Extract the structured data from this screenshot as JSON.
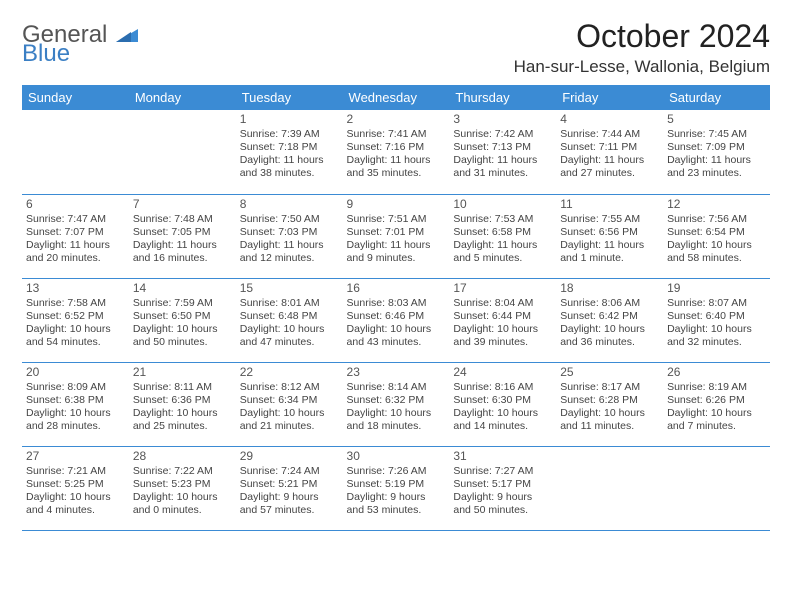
{
  "brand": {
    "text1": "General",
    "text2": "Blue",
    "logo_color": "#3b8bd4"
  },
  "title": "October 2024",
  "location": "Han-sur-Lesse, Wallonia, Belgium",
  "header_bg": "#3b8bd4",
  "weekdays": [
    "Sunday",
    "Monday",
    "Tuesday",
    "Wednesday",
    "Thursday",
    "Friday",
    "Saturday"
  ],
  "weeks": [
    [
      null,
      null,
      {
        "d": "1",
        "sr": "Sunrise: 7:39 AM",
        "ss": "Sunset: 7:18 PM",
        "dl1": "Daylight: 11 hours",
        "dl2": "and 38 minutes."
      },
      {
        "d": "2",
        "sr": "Sunrise: 7:41 AM",
        "ss": "Sunset: 7:16 PM",
        "dl1": "Daylight: 11 hours",
        "dl2": "and 35 minutes."
      },
      {
        "d": "3",
        "sr": "Sunrise: 7:42 AM",
        "ss": "Sunset: 7:13 PM",
        "dl1": "Daylight: 11 hours",
        "dl2": "and 31 minutes."
      },
      {
        "d": "4",
        "sr": "Sunrise: 7:44 AM",
        "ss": "Sunset: 7:11 PM",
        "dl1": "Daylight: 11 hours",
        "dl2": "and 27 minutes."
      },
      {
        "d": "5",
        "sr": "Sunrise: 7:45 AM",
        "ss": "Sunset: 7:09 PM",
        "dl1": "Daylight: 11 hours",
        "dl2": "and 23 minutes."
      }
    ],
    [
      {
        "d": "6",
        "sr": "Sunrise: 7:47 AM",
        "ss": "Sunset: 7:07 PM",
        "dl1": "Daylight: 11 hours",
        "dl2": "and 20 minutes."
      },
      {
        "d": "7",
        "sr": "Sunrise: 7:48 AM",
        "ss": "Sunset: 7:05 PM",
        "dl1": "Daylight: 11 hours",
        "dl2": "and 16 minutes."
      },
      {
        "d": "8",
        "sr": "Sunrise: 7:50 AM",
        "ss": "Sunset: 7:03 PM",
        "dl1": "Daylight: 11 hours",
        "dl2": "and 12 minutes."
      },
      {
        "d": "9",
        "sr": "Sunrise: 7:51 AM",
        "ss": "Sunset: 7:01 PM",
        "dl1": "Daylight: 11 hours",
        "dl2": "and 9 minutes."
      },
      {
        "d": "10",
        "sr": "Sunrise: 7:53 AM",
        "ss": "Sunset: 6:58 PM",
        "dl1": "Daylight: 11 hours",
        "dl2": "and 5 minutes."
      },
      {
        "d": "11",
        "sr": "Sunrise: 7:55 AM",
        "ss": "Sunset: 6:56 PM",
        "dl1": "Daylight: 11 hours",
        "dl2": "and 1 minute."
      },
      {
        "d": "12",
        "sr": "Sunrise: 7:56 AM",
        "ss": "Sunset: 6:54 PM",
        "dl1": "Daylight: 10 hours",
        "dl2": "and 58 minutes."
      }
    ],
    [
      {
        "d": "13",
        "sr": "Sunrise: 7:58 AM",
        "ss": "Sunset: 6:52 PM",
        "dl1": "Daylight: 10 hours",
        "dl2": "and 54 minutes."
      },
      {
        "d": "14",
        "sr": "Sunrise: 7:59 AM",
        "ss": "Sunset: 6:50 PM",
        "dl1": "Daylight: 10 hours",
        "dl2": "and 50 minutes."
      },
      {
        "d": "15",
        "sr": "Sunrise: 8:01 AM",
        "ss": "Sunset: 6:48 PM",
        "dl1": "Daylight: 10 hours",
        "dl2": "and 47 minutes."
      },
      {
        "d": "16",
        "sr": "Sunrise: 8:03 AM",
        "ss": "Sunset: 6:46 PM",
        "dl1": "Daylight: 10 hours",
        "dl2": "and 43 minutes."
      },
      {
        "d": "17",
        "sr": "Sunrise: 8:04 AM",
        "ss": "Sunset: 6:44 PM",
        "dl1": "Daylight: 10 hours",
        "dl2": "and 39 minutes."
      },
      {
        "d": "18",
        "sr": "Sunrise: 8:06 AM",
        "ss": "Sunset: 6:42 PM",
        "dl1": "Daylight: 10 hours",
        "dl2": "and 36 minutes."
      },
      {
        "d": "19",
        "sr": "Sunrise: 8:07 AM",
        "ss": "Sunset: 6:40 PM",
        "dl1": "Daylight: 10 hours",
        "dl2": "and 32 minutes."
      }
    ],
    [
      {
        "d": "20",
        "sr": "Sunrise: 8:09 AM",
        "ss": "Sunset: 6:38 PM",
        "dl1": "Daylight: 10 hours",
        "dl2": "and 28 minutes."
      },
      {
        "d": "21",
        "sr": "Sunrise: 8:11 AM",
        "ss": "Sunset: 6:36 PM",
        "dl1": "Daylight: 10 hours",
        "dl2": "and 25 minutes."
      },
      {
        "d": "22",
        "sr": "Sunrise: 8:12 AM",
        "ss": "Sunset: 6:34 PM",
        "dl1": "Daylight: 10 hours",
        "dl2": "and 21 minutes."
      },
      {
        "d": "23",
        "sr": "Sunrise: 8:14 AM",
        "ss": "Sunset: 6:32 PM",
        "dl1": "Daylight: 10 hours",
        "dl2": "and 18 minutes."
      },
      {
        "d": "24",
        "sr": "Sunrise: 8:16 AM",
        "ss": "Sunset: 6:30 PM",
        "dl1": "Daylight: 10 hours",
        "dl2": "and 14 minutes."
      },
      {
        "d": "25",
        "sr": "Sunrise: 8:17 AM",
        "ss": "Sunset: 6:28 PM",
        "dl1": "Daylight: 10 hours",
        "dl2": "and 11 minutes."
      },
      {
        "d": "26",
        "sr": "Sunrise: 8:19 AM",
        "ss": "Sunset: 6:26 PM",
        "dl1": "Daylight: 10 hours",
        "dl2": "and 7 minutes."
      }
    ],
    [
      {
        "d": "27",
        "sr": "Sunrise: 7:21 AM",
        "ss": "Sunset: 5:25 PM",
        "dl1": "Daylight: 10 hours",
        "dl2": "and 4 minutes."
      },
      {
        "d": "28",
        "sr": "Sunrise: 7:22 AM",
        "ss": "Sunset: 5:23 PM",
        "dl1": "Daylight: 10 hours",
        "dl2": "and 0 minutes."
      },
      {
        "d": "29",
        "sr": "Sunrise: 7:24 AM",
        "ss": "Sunset: 5:21 PM",
        "dl1": "Daylight: 9 hours",
        "dl2": "and 57 minutes."
      },
      {
        "d": "30",
        "sr": "Sunrise: 7:26 AM",
        "ss": "Sunset: 5:19 PM",
        "dl1": "Daylight: 9 hours",
        "dl2": "and 53 minutes."
      },
      {
        "d": "31",
        "sr": "Sunrise: 7:27 AM",
        "ss": "Sunset: 5:17 PM",
        "dl1": "Daylight: 9 hours",
        "dl2": "and 50 minutes."
      },
      null,
      null
    ]
  ]
}
